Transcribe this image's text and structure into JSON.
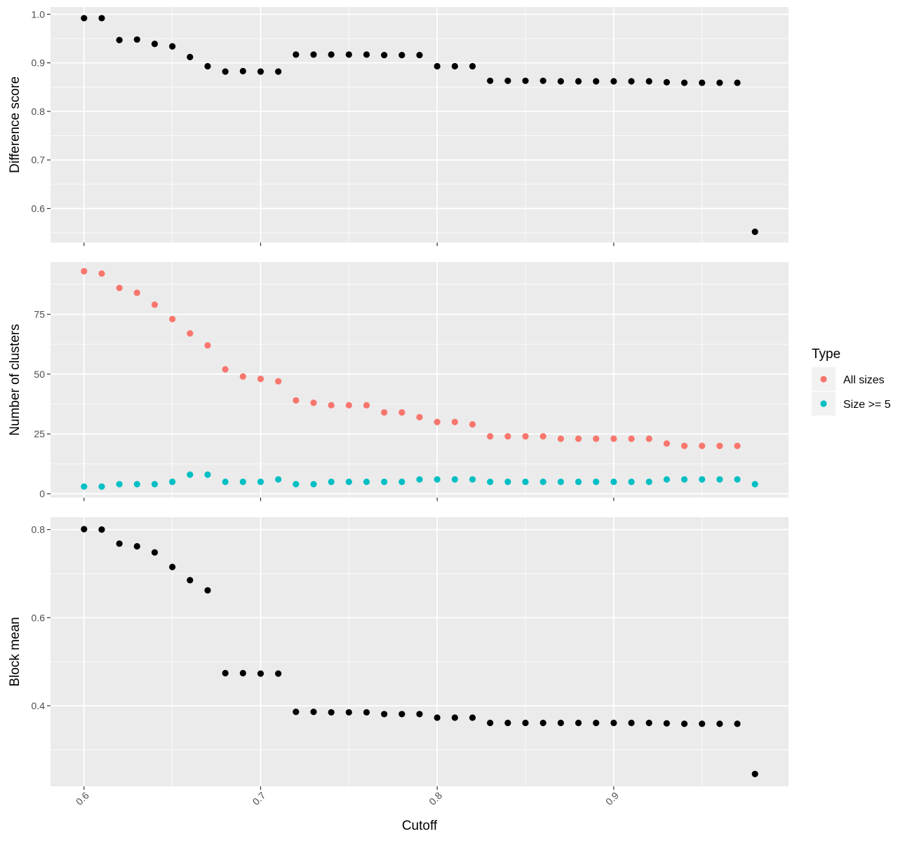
{
  "chart_data": {
    "type": "scatter",
    "xlabel": "Cutoff",
    "x_ticks": [
      "0.6",
      "0.7",
      "0.8",
      "0.9"
    ],
    "x_tick_values": [
      0.6,
      0.7,
      0.8,
      0.9
    ],
    "xlim": [
      0.581,
      0.999
    ],
    "x": [
      0.6,
      0.61,
      0.62,
      0.63,
      0.64,
      0.65,
      0.66,
      0.67,
      0.68,
      0.69,
      0.7,
      0.71,
      0.72,
      0.73,
      0.74,
      0.75,
      0.76,
      0.77,
      0.78,
      0.79,
      0.8,
      0.81,
      0.82,
      0.83,
      0.84,
      0.85,
      0.86,
      0.87,
      0.88,
      0.89,
      0.9,
      0.91,
      0.92,
      0.93,
      0.94,
      0.95,
      0.96,
      0.97,
      0.98
    ],
    "grid": true,
    "legend": {
      "title": "Type",
      "placement": "right",
      "items": [
        {
          "label": "All sizes",
          "color": "#F8766D"
        },
        {
          "label": "Size >= 5",
          "color": "#00BFC4"
        }
      ]
    },
    "panels": [
      {
        "ylabel": "Difference score",
        "ylim": [
          0.53,
          1.015
        ],
        "y_ticks": [
          "0.6",
          "0.7",
          "0.8",
          "0.9",
          "1.0"
        ],
        "y_tick_values": [
          0.6,
          0.7,
          0.8,
          0.9,
          1.0
        ],
        "series": [
          {
            "color": "#000000",
            "values": [
              0.992,
              0.992,
              0.947,
              0.948,
              0.939,
              0.934,
              0.912,
              0.893,
              0.882,
              0.883,
              0.882,
              0.882,
              0.917,
              0.917,
              0.917,
              0.917,
              0.917,
              0.916,
              0.916,
              0.916,
              0.893,
              0.893,
              0.893,
              0.863,
              0.863,
              0.863,
              0.863,
              0.862,
              0.862,
              0.862,
              0.862,
              0.862,
              0.862,
              0.86,
              0.859,
              0.859,
              0.859,
              0.859,
              0.552
            ]
          }
        ]
      },
      {
        "ylabel": "Number of clusters",
        "ylim": [
          -1.6,
          96.8
        ],
        "y_ticks": [
          "0",
          "25",
          "50",
          "75"
        ],
        "y_tick_values": [
          0,
          25,
          50,
          75
        ],
        "series": [
          {
            "name": "All sizes",
            "color": "#F8766D",
            "values": [
              93,
              92,
              86,
              84,
              79,
              73,
              67,
              62,
              52,
              49,
              48,
              47,
              39,
              38,
              37,
              37,
              37,
              34,
              34,
              32,
              30,
              30,
              29,
              24,
              24,
              24,
              24,
              23,
              23,
              23,
              23,
              23,
              23,
              21,
              20,
              20,
              20,
              20,
              null
            ]
          },
          {
            "name": "Size >= 5",
            "color": "#00BFC4",
            "values": [
              3,
              3,
              4,
              4,
              4,
              5,
              8,
              8,
              5,
              5,
              5,
              6,
              4,
              4,
              5,
              5,
              5,
              5,
              5,
              6,
              6,
              6,
              6,
              5,
              5,
              5,
              5,
              5,
              5,
              5,
              5,
              5,
              5,
              6,
              6,
              6,
              6,
              6,
              4
            ]
          }
        ]
      },
      {
        "ylabel": "Block mean",
        "ylim": [
          0.217,
          0.828
        ],
        "y_ticks": [
          "0.4",
          "0.6",
          "0.8"
        ],
        "y_tick_values": [
          0.4,
          0.6,
          0.8
        ],
        "series": [
          {
            "color": "#000000",
            "values": [
              0.801,
              0.8,
              0.768,
              0.762,
              0.748,
              0.715,
              0.685,
              0.662,
              0.474,
              0.474,
              0.473,
              0.473,
              0.386,
              0.386,
              0.385,
              0.385,
              0.385,
              0.381,
              0.381,
              0.381,
              0.373,
              0.373,
              0.373,
              0.361,
              0.361,
              0.361,
              0.361,
              0.361,
              0.361,
              0.361,
              0.361,
              0.361,
              0.361,
              0.36,
              0.359,
              0.359,
              0.359,
              0.359,
              0.245
            ]
          }
        ]
      }
    ]
  }
}
